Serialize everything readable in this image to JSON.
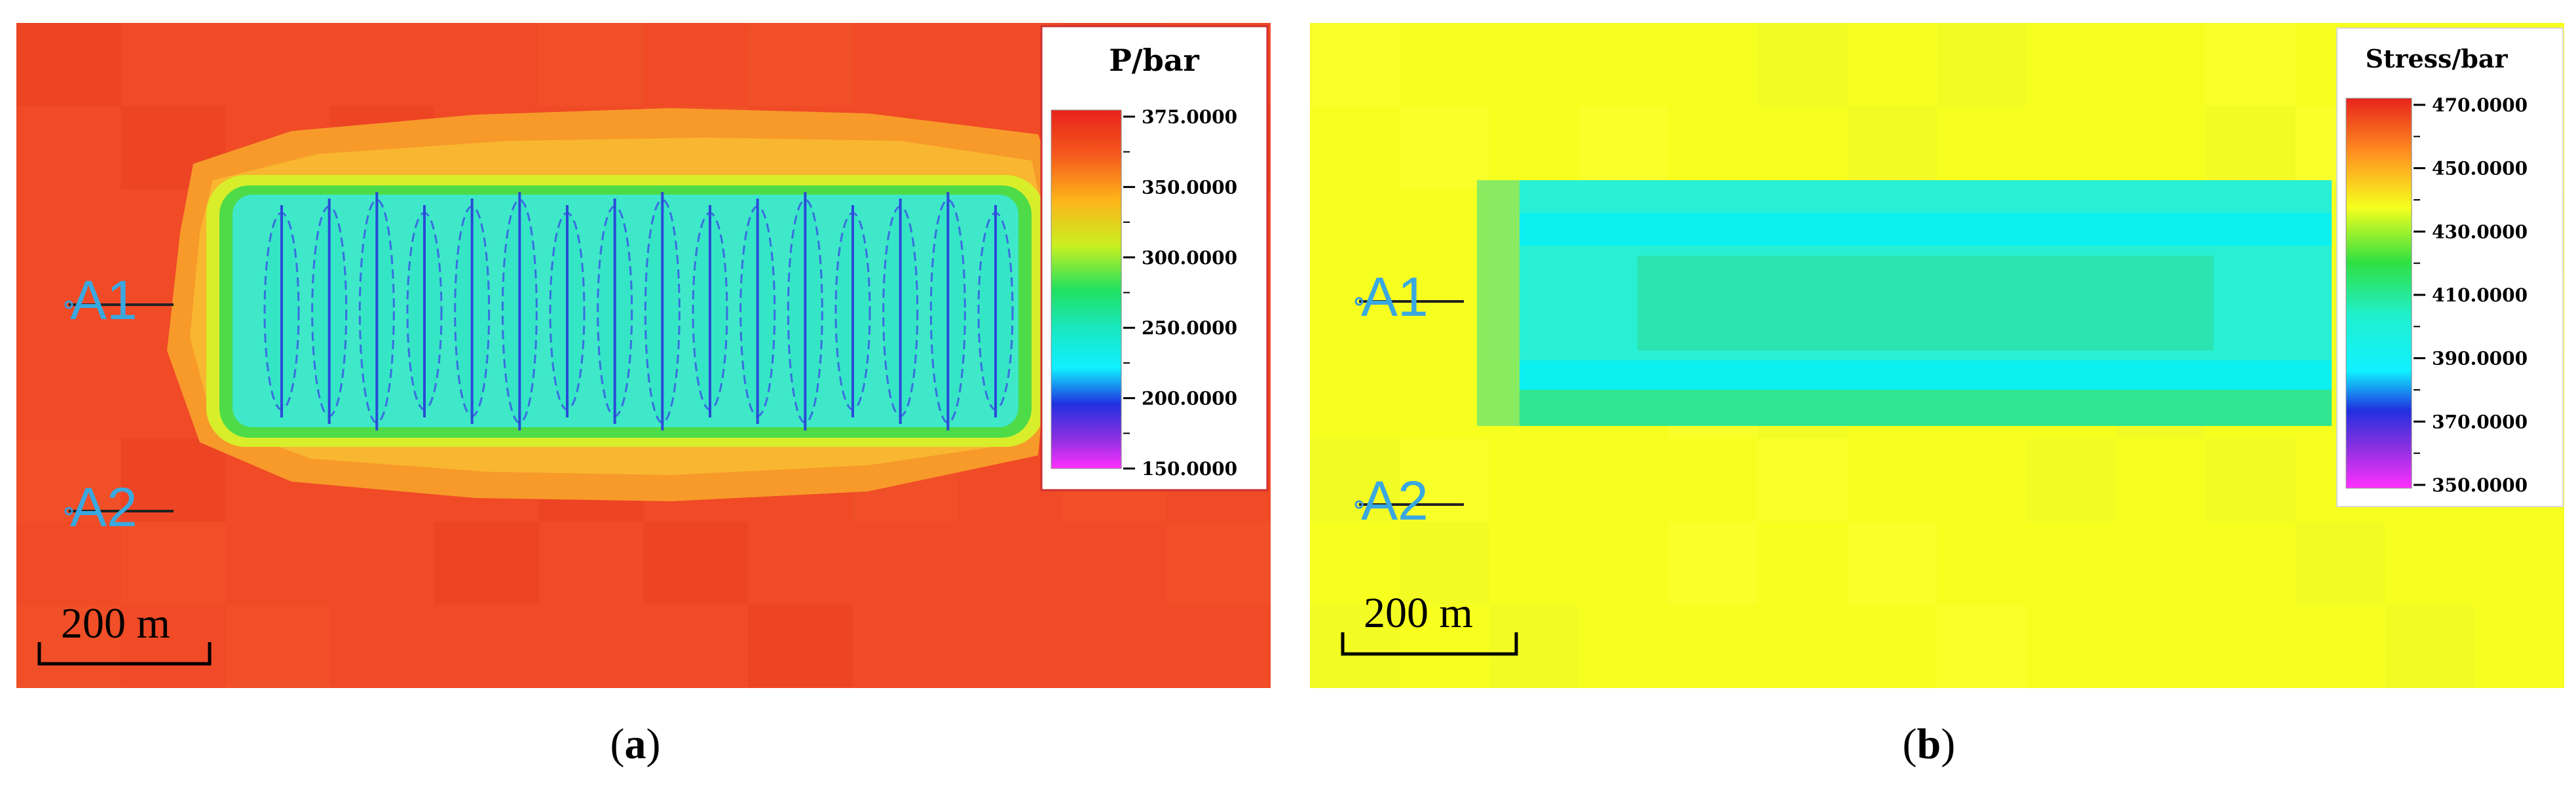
{
  "panels": [
    {
      "id": "a",
      "caption_letter": "a",
      "legend": {
        "title": "P/bar",
        "ticks": [
          "375.0000",
          "350.0000",
          "300.0000",
          "250.0000",
          "200.0000",
          "150.0000"
        ]
      },
      "markers": {
        "a1": "A1",
        "a2": "A2"
      },
      "scale_bar": "200 m",
      "colors": {
        "background": "#f04a26",
        "halo": "#f79a2a",
        "rim": "#d8ee2a",
        "interior": "#3ee8c8",
        "fracture": "#3060d8"
      }
    },
    {
      "id": "b",
      "caption_letter": "b",
      "legend": {
        "title": "Stress/bar",
        "ticks": [
          "470.0000",
          "450.0000",
          "430.0000",
          "410.0000",
          "390.0000",
          "370.0000",
          "350.0000"
        ]
      },
      "markers": {
        "a1": "A1",
        "a2": "A2"
      },
      "scale_bar": "200 m",
      "colors": {
        "background": "#f6ff1e",
        "halo": "#e2f22a",
        "interior": "#28f0d4",
        "core": "#2ce4b0",
        "rim": "#0ce8f0"
      }
    }
  ]
}
